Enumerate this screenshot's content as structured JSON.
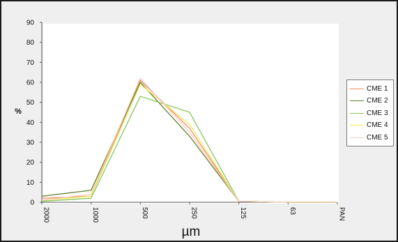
{
  "chart_data": {
    "type": "line",
    "title": "",
    "xlabel": "µm",
    "ylabel": "%",
    "ylim": [
      0,
      90
    ],
    "yticks": [
      "0",
      "10",
      "20",
      "30",
      "40",
      "50",
      "60",
      "70",
      "80",
      "90"
    ],
    "categories": [
      "2000",
      "1000",
      "500",
      "250",
      "125",
      "63",
      "PAN"
    ],
    "grid": false,
    "legend_position": "right",
    "series": [
      {
        "name": "CME 1",
        "color": "#f08a5a",
        "values": [
          2,
          3,
          61,
          37,
          0.5,
          0,
          0
        ]
      },
      {
        "name": "CME 2",
        "color": "#5b7f2b",
        "values": [
          3,
          6,
          60,
          33,
          0.5,
          0,
          0
        ]
      },
      {
        "name": "CME 3",
        "color": "#86c85a",
        "values": [
          0.5,
          2,
          53,
          45,
          0.5,
          0,
          0
        ]
      },
      {
        "name": "CME 4",
        "color": "#f2ea55",
        "values": [
          1,
          3,
          59,
          39,
          0.5,
          0,
          0
        ]
      },
      {
        "name": "CME 5",
        "color": "#f5c9c0",
        "values": [
          1,
          4,
          62,
          35,
          0.5,
          0,
          0
        ]
      }
    ]
  }
}
